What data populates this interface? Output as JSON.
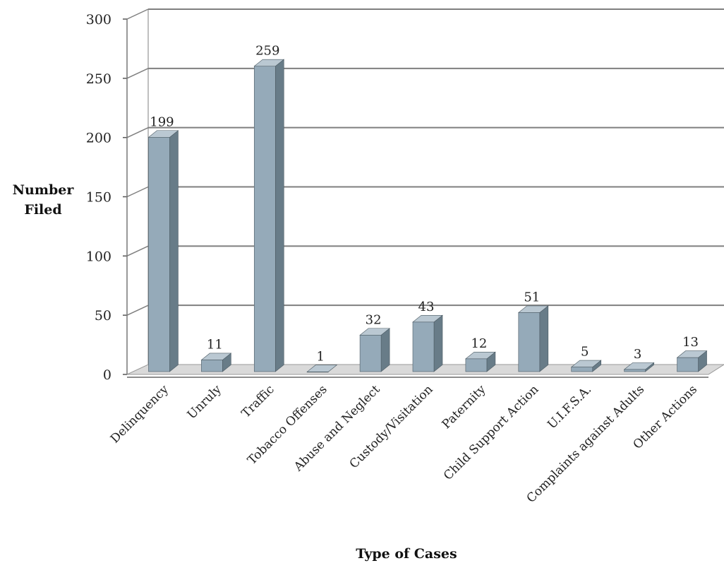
{
  "chart_data": {
    "type": "bar",
    "title": "",
    "xlabel": "Type of Cases",
    "ylabel": "Number Filed",
    "ylabel_lines": [
      "Number",
      "Filed"
    ],
    "ylim": [
      0,
      300
    ],
    "yticks": [
      "0",
      "50",
      "100",
      "150",
      "200",
      "250",
      "300"
    ],
    "grid": true,
    "categories": [
      "Delinquency",
      "Unruly",
      "Traffic",
      "Tobacco Offenses",
      "Abuse and Neglect",
      "Custody/Visitation",
      "Paternity",
      "Child Support Action",
      "U.I.F.S.A.",
      "Complaints against Adults",
      "Other Actions"
    ],
    "values": [
      199,
      11,
      259,
      1,
      32,
      43,
      12,
      51,
      5,
      3,
      13
    ],
    "data_labels": [
      "199",
      "11",
      "259",
      "1",
      "32",
      "43",
      "12",
      "51",
      "5",
      "3",
      "13"
    ]
  },
  "colors": {
    "bar_front": "#95aab9",
    "bar_side": "#687c88",
    "bar_top": "#bac8d2",
    "grid": "#7f7f7f",
    "floor": "#d9d9d9"
  }
}
